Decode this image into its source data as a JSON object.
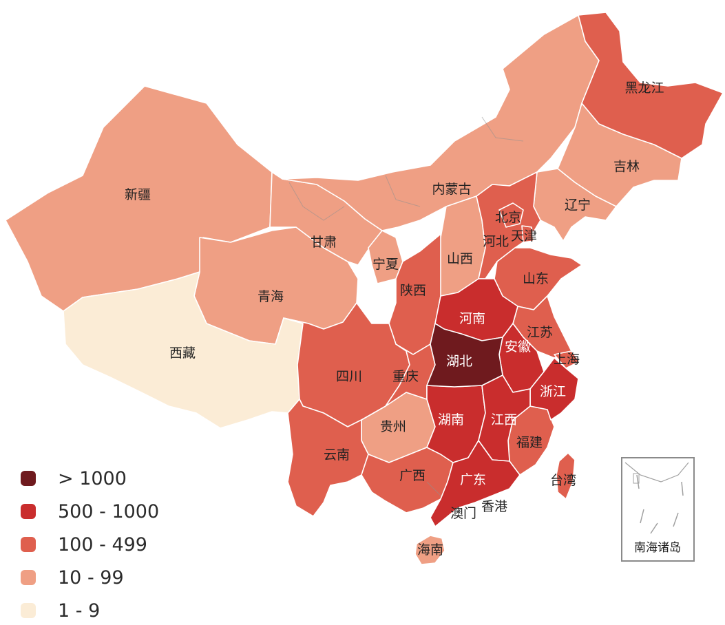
{
  "colors": {
    "gt1000": "#6f1a1e",
    "r500_1000": "#c92d2d",
    "r100_499": "#df5f4e",
    "r10_99": "#ef9f84",
    "r1_9": "#fbecd6"
  },
  "provinces": {
    "xinjiang": "新疆",
    "xizang": "西藏",
    "qinghai": "青海",
    "gansu": "甘肃",
    "neimenggu": "内蒙古",
    "heilongjiang": "黑龙江",
    "jilin": "吉林",
    "liaoning": "辽宁",
    "beijing": "北京",
    "tianjin": "天津",
    "hebei": "河北",
    "shanxi": "山西",
    "ningxia": "宁夏",
    "shaanxi": "陕西",
    "shandong": "山东",
    "henan": "河南",
    "jiangsu": "江苏",
    "anhui": "安徽",
    "shanghai": "上海",
    "hubei": "湖北",
    "sichuan": "四川",
    "chongqing": "重庆",
    "zhejiang": "浙江",
    "guizhou": "贵州",
    "hunan": "湖南",
    "jiangxi": "江西",
    "fujian": "福建",
    "yunnan": "云南",
    "guangxi": "广西",
    "guangdong": "广东",
    "taiwan": "台湾",
    "xianggang": "香港",
    "aomen": "澳门",
    "hainan": "海南"
  },
  "inset": {
    "label": "南海诸岛"
  },
  "legend": [
    {
      "label": "> 1000",
      "color": "#6f1a1e"
    },
    {
      "label": "500 - 1000",
      "color": "#c92d2d"
    },
    {
      "label": "100 - 499",
      "color": "#df5f4e"
    },
    {
      "label": "10 - 99",
      "color": "#ef9f84"
    },
    {
      "label": "1 - 9",
      "color": "#fbecd6"
    }
  ]
}
